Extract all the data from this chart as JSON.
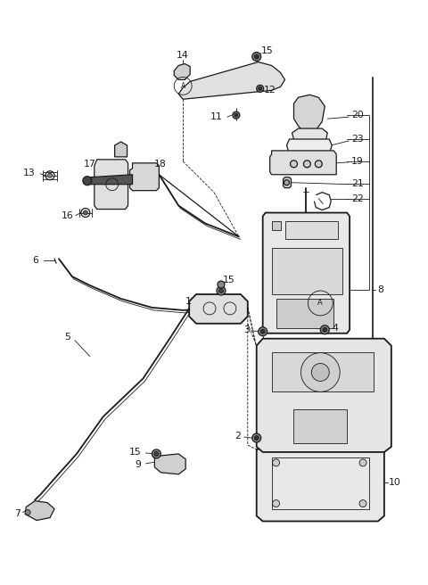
{
  "bg_color": "#ffffff",
  "line_color": "#1a1a1a",
  "figsize": [
    4.8,
    6.56
  ],
  "dpi": 100,
  "gray_dark": "#333333",
  "gray_mid": "#888888",
  "gray_light": "#cccccc",
  "gray_fill": "#e8e8e8"
}
